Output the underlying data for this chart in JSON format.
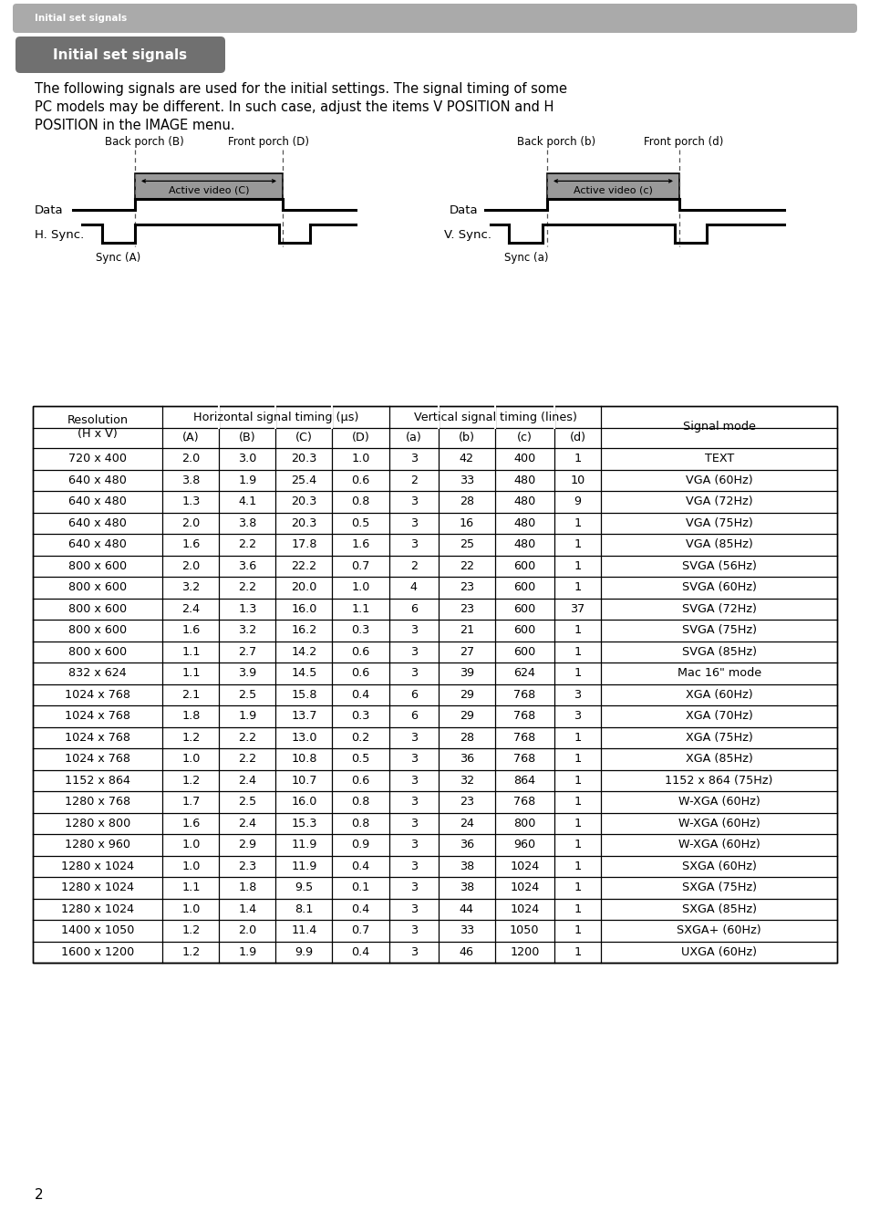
{
  "page_bg": "#ffffff",
  "header_bg": "#aaaaaa",
  "header_text": "Initial set signals",
  "header_text_color": "#ffffff",
  "title_bg": "#707070",
  "title_text": "Initial set signals",
  "title_text_color": "#ffffff",
  "body_text_line1": "The following signals are used for the initial settings. The signal timing of some",
  "body_text_line2": "PC models may be different. In such case, adjust the items V POSITION and H",
  "body_text_line3": "POSITION in the IMAGE menu.",
  "table_data": [
    [
      "720 x 400",
      "2.0",
      "3.0",
      "20.3",
      "1.0",
      "3",
      "42",
      "400",
      "1",
      "TEXT"
    ],
    [
      "640 x 480",
      "3.8",
      "1.9",
      "25.4",
      "0.6",
      "2",
      "33",
      "480",
      "10",
      "VGA (60Hz)"
    ],
    [
      "640 x 480",
      "1.3",
      "4.1",
      "20.3",
      "0.8",
      "3",
      "28",
      "480",
      "9",
      "VGA (72Hz)"
    ],
    [
      "640 x 480",
      "2.0",
      "3.8",
      "20.3",
      "0.5",
      "3",
      "16",
      "480",
      "1",
      "VGA (75Hz)"
    ],
    [
      "640 x 480",
      "1.6",
      "2.2",
      "17.8",
      "1.6",
      "3",
      "25",
      "480",
      "1",
      "VGA (85Hz)"
    ],
    [
      "800 x 600",
      "2.0",
      "3.6",
      "22.2",
      "0.7",
      "2",
      "22",
      "600",
      "1",
      "SVGA (56Hz)"
    ],
    [
      "800 x 600",
      "3.2",
      "2.2",
      "20.0",
      "1.0",
      "4",
      "23",
      "600",
      "1",
      "SVGA (60Hz)"
    ],
    [
      "800 x 600",
      "2.4",
      "1.3",
      "16.0",
      "1.1",
      "6",
      "23",
      "600",
      "37",
      "SVGA (72Hz)"
    ],
    [
      "800 x 600",
      "1.6",
      "3.2",
      "16.2",
      "0.3",
      "3",
      "21",
      "600",
      "1",
      "SVGA (75Hz)"
    ],
    [
      "800 x 600",
      "1.1",
      "2.7",
      "14.2",
      "0.6",
      "3",
      "27",
      "600",
      "1",
      "SVGA (85Hz)"
    ],
    [
      "832 x 624",
      "1.1",
      "3.9",
      "14.5",
      "0.6",
      "3",
      "39",
      "624",
      "1",
      "Mac 16\" mode"
    ],
    [
      "1024 x 768",
      "2.1",
      "2.5",
      "15.8",
      "0.4",
      "6",
      "29",
      "768",
      "3",
      "XGA (60Hz)"
    ],
    [
      "1024 x 768",
      "1.8",
      "1.9",
      "13.7",
      "0.3",
      "6",
      "29",
      "768",
      "3",
      "XGA (70Hz)"
    ],
    [
      "1024 x 768",
      "1.2",
      "2.2",
      "13.0",
      "0.2",
      "3",
      "28",
      "768",
      "1",
      "XGA (75Hz)"
    ],
    [
      "1024 x 768",
      "1.0",
      "2.2",
      "10.8",
      "0.5",
      "3",
      "36",
      "768",
      "1",
      "XGA (85Hz)"
    ],
    [
      "1152 x 864",
      "1.2",
      "2.4",
      "10.7",
      "0.6",
      "3",
      "32",
      "864",
      "1",
      "1152 x 864 (75Hz)"
    ],
    [
      "1280 x 768",
      "1.7",
      "2.5",
      "16.0",
      "0.8",
      "3",
      "23",
      "768",
      "1",
      "W-XGA (60Hz)"
    ],
    [
      "1280 x 800",
      "1.6",
      "2.4",
      "15.3",
      "0.8",
      "3",
      "24",
      "800",
      "1",
      "W-XGA (60Hz)"
    ],
    [
      "1280 x 960",
      "1.0",
      "2.9",
      "11.9",
      "0.9",
      "3",
      "36",
      "960",
      "1",
      "W-XGA (60Hz)"
    ],
    [
      "1280 x 1024",
      "1.0",
      "2.3",
      "11.9",
      "0.4",
      "3",
      "38",
      "1024",
      "1",
      "SXGA (60Hz)"
    ],
    [
      "1280 x 1024",
      "1.1",
      "1.8",
      "9.5",
      "0.1",
      "3",
      "38",
      "1024",
      "1",
      "SXGA (75Hz)"
    ],
    [
      "1280 x 1024",
      "1.0",
      "1.4",
      "8.1",
      "0.4",
      "3",
      "44",
      "1024",
      "1",
      "SXGA (85Hz)"
    ],
    [
      "1400 x 1050",
      "1.2",
      "2.0",
      "11.4",
      "0.7",
      "3",
      "33",
      "1050",
      "1",
      "SXGA+ (60Hz)"
    ],
    [
      "1600 x 1200",
      "1.2",
      "1.9",
      "9.9",
      "0.4",
      "3",
      "46",
      "1200",
      "1",
      "UXGA (60Hz)"
    ]
  ],
  "footer_text": "2"
}
